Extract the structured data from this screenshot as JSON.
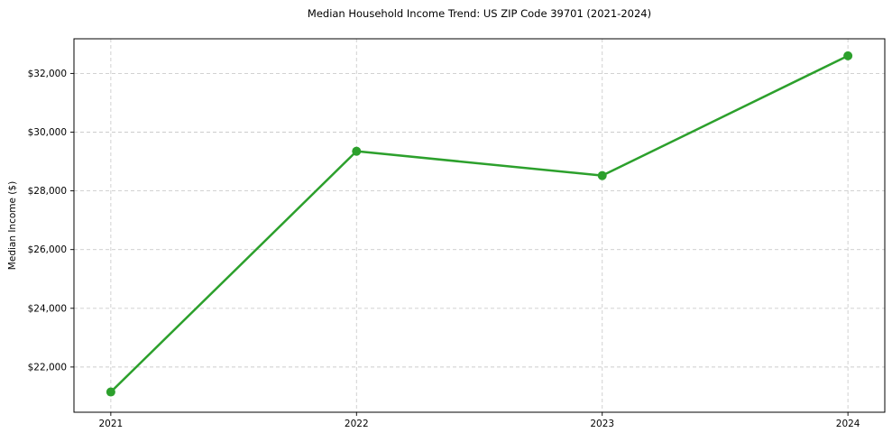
{
  "page": {
    "background": "#ffffff"
  },
  "chart_data": {
    "type": "line",
    "title": "Median Household Income Trend: US ZIP Code 39701 (2021-2024)",
    "xlabel": "",
    "ylabel": "Median Income ($)",
    "categories": [
      2021,
      2022,
      2023,
      2024
    ],
    "x_tick_labels": [
      "2021",
      "2022",
      "2023",
      "2024"
    ],
    "series": [
      {
        "values": [
          21150,
          29350,
          28520,
          32600
        ],
        "color": "#2ca02c"
      }
    ],
    "y_ticks": [
      {
        "value": 22000,
        "label": "$22,000"
      },
      {
        "value": 24000,
        "label": "$24,000"
      },
      {
        "value": 26000,
        "label": "$26,000"
      },
      {
        "value": 28000,
        "label": "$28,000"
      },
      {
        "value": 30000,
        "label": "$30,000"
      },
      {
        "value": 32000,
        "label": "$32,000"
      }
    ],
    "xlim": [
      2020.85,
      2024.15
    ],
    "ylim": [
      20460,
      33180
    ],
    "grid": true,
    "grid_color": "#cccccc",
    "grid_style": "dashed",
    "legend_position": "none",
    "line_width": 2.5,
    "marker": "circle",
    "marker_radius": 5,
    "spine_color": "#000000",
    "text_color": "#000000"
  }
}
